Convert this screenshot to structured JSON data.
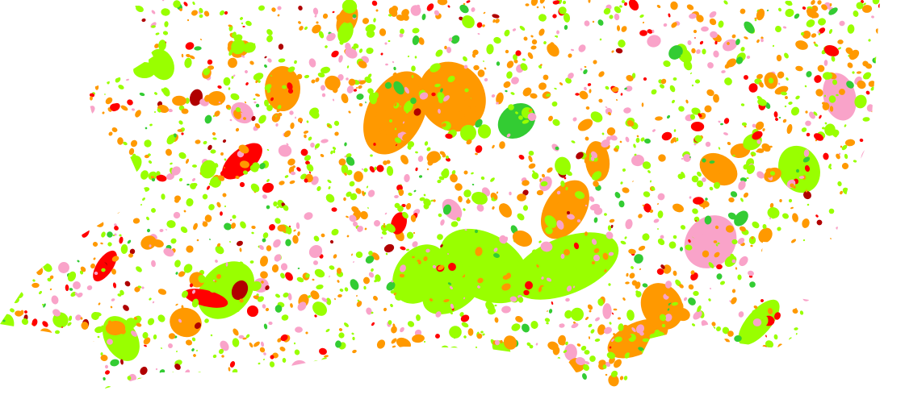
{
  "map": {
    "background": "#ffffff",
    "classes": [
      {
        "id": "orange",
        "color": "#ff9900",
        "weight": 0.3
      },
      {
        "id": "lime",
        "color": "#99ff00",
        "weight": 0.36
      },
      {
        "id": "pink",
        "color": "#f9a3c9",
        "weight": 0.17
      },
      {
        "id": "red",
        "color": "#ff0000",
        "weight": 0.08
      },
      {
        "id": "dark-red",
        "color": "#b00000",
        "weight": 0.03
      },
      {
        "id": "green",
        "color": "#33cc33",
        "weight": 0.06
      }
    ]
  }
}
